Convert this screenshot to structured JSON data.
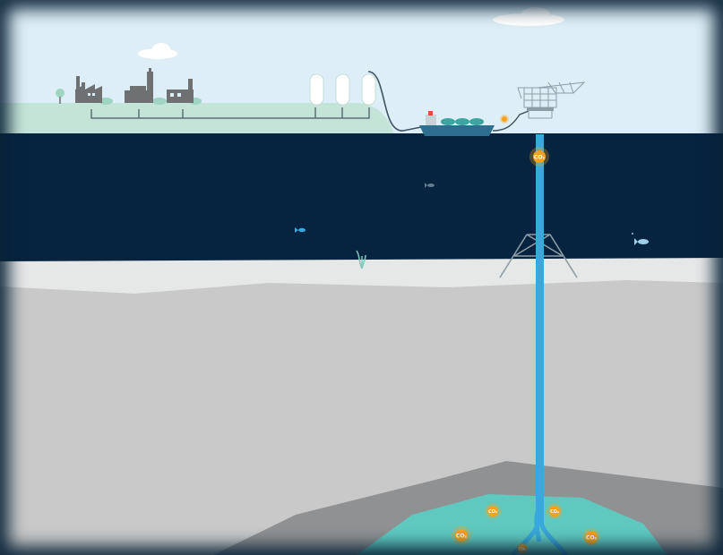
{
  "colors": {
    "sky": "#ddeef6",
    "land": "#c5e4d8",
    "sea": "#062340",
    "seabed_light": "#e6e7e7",
    "seabed_dark": "#c9c9c9",
    "rock": "#8f9192",
    "reservoir": "#5fc9c0",
    "pipe": "#39a8dc",
    "co2_marker": "#f5a21c",
    "ship_hull": "#2e6f8f",
    "ship_cargo": "#3aa6a0",
    "factory": "#6e7072",
    "tank": "#ffffff"
  },
  "markers": {
    "wellhead_co2": "CO₂",
    "reservoir_co2": [
      "CO₂",
      "CO₂",
      "CO₂",
      "CO₂",
      "CO₂"
    ]
  },
  "icons": [
    "cloud-icon",
    "factory-icon",
    "storage-tank-icon",
    "ship-icon",
    "buoy-icon",
    "platform-icon",
    "fish-icon",
    "seaweed-icon"
  ]
}
